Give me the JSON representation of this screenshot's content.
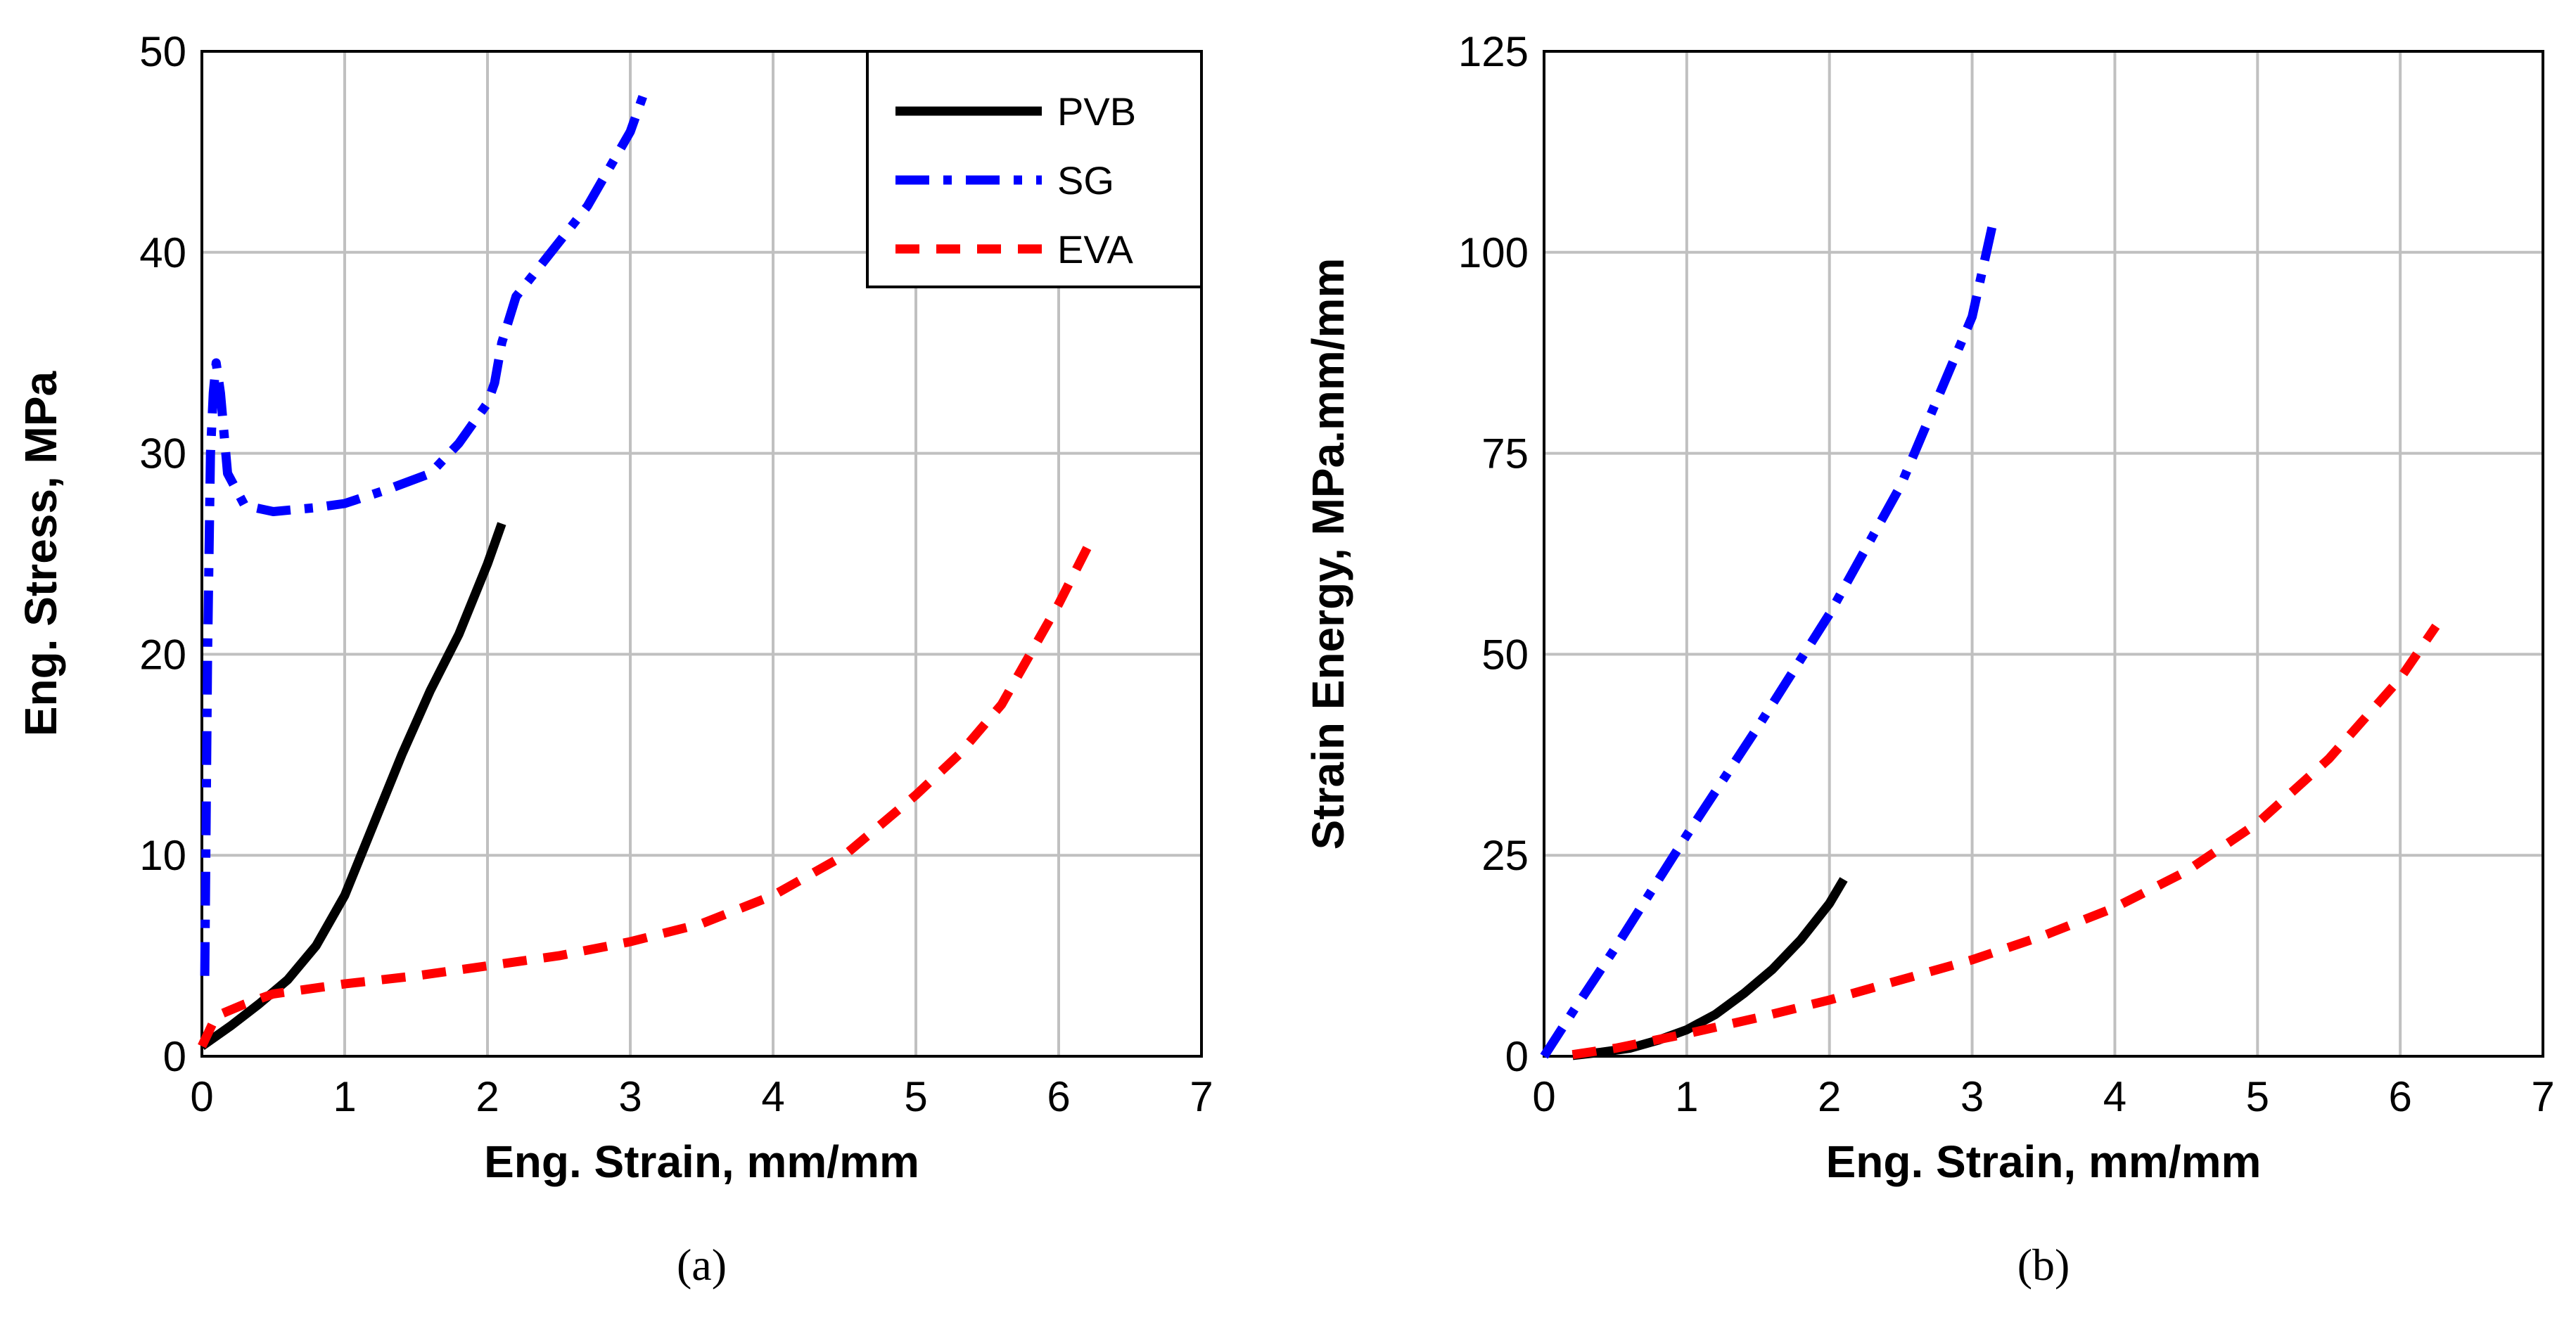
{
  "chart_data": [
    {
      "type": "line",
      "panel_label": "(a)",
      "xlabel": "Eng. Strain, mm/mm",
      "ylabel": "Eng. Stress, MPa",
      "xlim": [
        0,
        7
      ],
      "ylim": [
        0,
        50
      ],
      "xticks": [
        "0",
        "1",
        "2",
        "3",
        "4",
        "5",
        "6",
        "7"
      ],
      "yticks": [
        "0",
        "10",
        "20",
        "30",
        "40",
        "50"
      ],
      "grid": true,
      "legend": {
        "position": "top-right",
        "entries": [
          "PVB",
          "SG",
          "EVA"
        ]
      },
      "series": [
        {
          "name": "PVB",
          "color": "#000000",
          "style": "solid",
          "x": [
            0,
            0.2,
            0.4,
            0.6,
            0.8,
            1.0,
            1.2,
            1.4,
            1.6,
            1.8,
            2.0,
            2.1
          ],
          "y": [
            0.5,
            1.5,
            2.6,
            3.8,
            5.5,
            8.0,
            11.5,
            15.0,
            18.2,
            21.0,
            24.5,
            26.5
          ]
        },
        {
          "name": "SG",
          "color": "#0000ff",
          "style": "dash-dot",
          "x": [
            0.02,
            0.04,
            0.06,
            0.08,
            0.1,
            0.13,
            0.18,
            0.3,
            0.5,
            0.8,
            1.0,
            1.3,
            1.6,
            1.8,
            2.0,
            2.05,
            2.1,
            2.2,
            2.4,
            2.7,
            3.0,
            3.1
          ],
          "y": [
            4,
            20,
            30,
            33,
            34.5,
            33,
            29,
            27.4,
            27.1,
            27.3,
            27.5,
            28.2,
            29.0,
            30.5,
            32.5,
            33.5,
            35.5,
            37.8,
            39.6,
            42.3,
            46.0,
            48.0
          ]
        },
        {
          "name": "EVA",
          "color": "#ff0000",
          "style": "dash",
          "x": [
            0,
            0.1,
            0.3,
            0.5,
            1.0,
            1.5,
            2.0,
            2.5,
            3.0,
            3.5,
            4.0,
            4.5,
            5.0,
            5.3,
            5.6,
            5.8,
            6.0,
            6.25
          ],
          "y": [
            0.5,
            2.0,
            2.6,
            3.1,
            3.6,
            4.0,
            4.5,
            5.0,
            5.7,
            6.6,
            8.0,
            10.0,
            13.0,
            15.0,
            17.5,
            20.0,
            22.5,
            26.0
          ]
        }
      ]
    },
    {
      "type": "line",
      "panel_label": "(b)",
      "xlabel": "Eng. Strain, mm/mm",
      "ylabel": "Strain Energy, MPa.mm/mm",
      "xlim": [
        0,
        7
      ],
      "ylim": [
        0,
        125
      ],
      "xticks": [
        "0",
        "1",
        "2",
        "3",
        "4",
        "5",
        "6",
        "7"
      ],
      "yticks": [
        "0",
        "25",
        "50",
        "75",
        "100",
        "125"
      ],
      "grid": true,
      "series": [
        {
          "name": "PVB",
          "color": "#000000",
          "style": "solid",
          "x": [
            0.2,
            0.4,
            0.6,
            0.8,
            1.0,
            1.2,
            1.4,
            1.6,
            1.8,
            2.0,
            2.1
          ],
          "y": [
            0.1,
            0.5,
            1.0,
            2.0,
            3.3,
            5.2,
            7.8,
            10.8,
            14.5,
            19.0,
            22.0
          ]
        },
        {
          "name": "SG",
          "color": "#0000ff",
          "style": "dash-dot",
          "x": [
            0,
            0.2,
            0.5,
            1.0,
            1.5,
            2.0,
            2.5,
            3.0,
            3.15
          ],
          "y": [
            0,
            5.5,
            13.5,
            27.5,
            41.0,
            55.0,
            71.0,
            92.0,
            104.0
          ]
        },
        {
          "name": "EVA",
          "color": "#ff0000",
          "style": "dash",
          "x": [
            0.2,
            0.5,
            1.0,
            1.5,
            2.0,
            2.5,
            3.0,
            3.5,
            4.0,
            4.5,
            5.0,
            5.5,
            6.0,
            6.25
          ],
          "y": [
            0.2,
            1.0,
            2.8,
            4.8,
            7.0,
            9.5,
            12.0,
            15.0,
            18.5,
            23.0,
            29.0,
            37.0,
            47.0,
            53.5
          ]
        }
      ]
    }
  ]
}
